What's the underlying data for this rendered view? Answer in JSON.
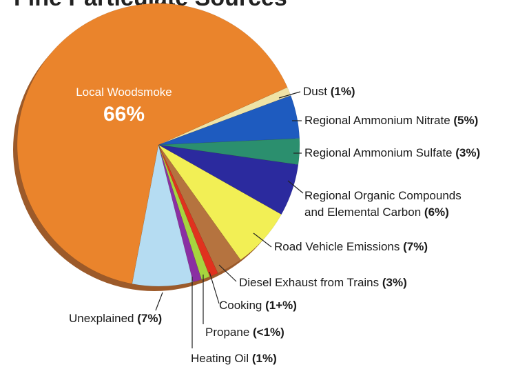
{
  "chart_data": {
    "type": "pie",
    "title": "Fine Particulate Sources",
    "categories": [
      "Dust",
      "Regional Ammonium Nitrate",
      "Regional Ammonium Sulfate",
      "Regional Organic Compounds and Elemental Carbon",
      "Road Vehicle Emissions",
      "Diesel Exhaust from Trains",
      "Cooking",
      "Propane",
      "Heating Oil",
      "Unexplained",
      "Local Woodsmoke"
    ],
    "values": [
      1,
      5,
      3,
      6,
      7,
      3,
      1,
      1,
      1,
      7,
      66
    ],
    "value_labels": [
      "(1%)",
      "(5%)",
      "(3%)",
      "(6%)",
      "(7%)",
      "(3%)",
      "(1+%)",
      "(<1%)",
      "(1%)",
      "(7%)",
      "66%"
    ],
    "colors": [
      "#efe3a6",
      "#1e5bbf",
      "#2b8f6e",
      "#2b2a9e",
      "#f2ef55",
      "#b5733f",
      "#e0321e",
      "#a6d43f",
      "#8a2fa3",
      "#b5dcf2",
      "#ea842c"
    ]
  }
}
